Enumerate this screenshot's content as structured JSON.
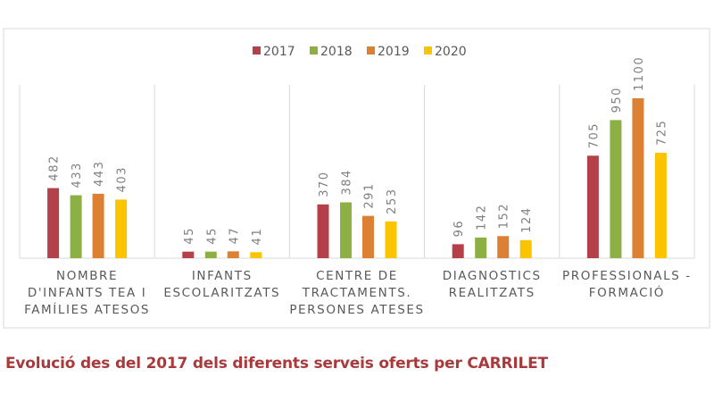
{
  "caption": "Evolució des del 2017 dels diferents serveis oferts per CARRILET",
  "chart_data": {
    "type": "bar",
    "title": "",
    "xlabel": "",
    "ylabel": "",
    "legend_position": "top",
    "grid": false,
    "ylim": [
      0,
      1100
    ],
    "categories": [
      [
        "NOMBRE",
        "D'INFANTS TEA I",
        "FAMÍLIES ATESOS"
      ],
      [
        "INFANTS",
        "ESCOLARITZATS"
      ],
      [
        "CENTRE DE",
        "TRACTAMENTS.",
        "PERSONES ATESES"
      ],
      [
        "DIAGNOSTICS",
        "REALITZATS"
      ],
      [
        "PROFESSIONALS -",
        "FORMACIÓ"
      ]
    ],
    "series": [
      {
        "name": "2017",
        "color": "#b4414a",
        "values": [
          482,
          45,
          370,
          96,
          705
        ]
      },
      {
        "name": "2018",
        "color": "#8cb043",
        "values": [
          433,
          45,
          384,
          142,
          950
        ]
      },
      {
        "name": "2019",
        "color": "#dc8134",
        "values": [
          443,
          47,
          291,
          152,
          1100
        ]
      },
      {
        "name": "2020",
        "color": "#fbc400",
        "values": [
          403,
          41,
          253,
          124,
          725
        ]
      }
    ]
  }
}
